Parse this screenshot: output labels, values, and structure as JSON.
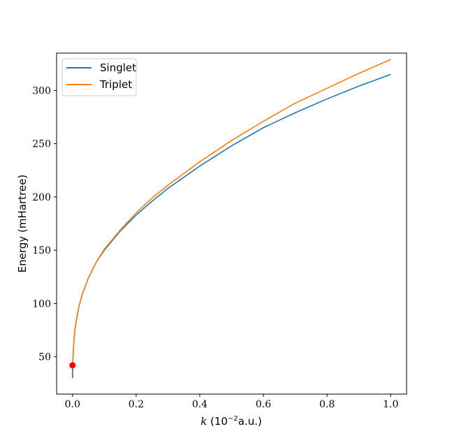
{
  "chart_data": {
    "type": "line",
    "title": "",
    "xlabel_var": "k",
    "xlabel_unit_prefix": " (10",
    "xlabel_unit_exp": "−2",
    "xlabel_unit_suffix": "a.u.)",
    "ylabel": "Energy (mHartree)",
    "xlim": [
      -0.05,
      1.05
    ],
    "ylim": [
      15,
      335
    ],
    "xticks": [
      0.0,
      0.2,
      0.4,
      0.6,
      0.8,
      1.0
    ],
    "xtick_labels": [
      "0.0",
      "0.2",
      "0.4",
      "0.6",
      "0.8",
      "1.0"
    ],
    "yticks": [
      50,
      100,
      150,
      200,
      250,
      300
    ],
    "ytick_labels": [
      "50",
      "100",
      "150",
      "200",
      "250",
      "300"
    ],
    "grid": false,
    "legend_position": "top-left",
    "series": [
      {
        "name": "Singlet",
        "color": "#1f77b4",
        "x": [
          0.0,
          0.001,
          0.005,
          0.01,
          0.02,
          0.03,
          0.05,
          0.075,
          0.1,
          0.15,
          0.2,
          0.25,
          0.3,
          0.4,
          0.5,
          0.6,
          0.7,
          0.8,
          0.9,
          1.0
        ],
        "y": [
          30,
          47,
          68,
          81,
          97,
          108,
          124,
          139,
          150,
          168,
          183,
          196,
          208,
          229,
          248,
          265,
          279,
          292,
          304,
          315
        ]
      },
      {
        "name": "Triplet",
        "color": "#ff7f0e",
        "x": [
          0.001,
          0.005,
          0.01,
          0.02,
          0.03,
          0.05,
          0.075,
          0.1,
          0.15,
          0.2,
          0.25,
          0.3,
          0.4,
          0.5,
          0.6,
          0.7,
          0.8,
          0.9,
          1.0
        ],
        "y": [
          45,
          67,
          80,
          97,
          108,
          124,
          139,
          151,
          169,
          185,
          199,
          211,
          233,
          253,
          271,
          288,
          302,
          316,
          329
        ]
      }
    ],
    "markers": [
      {
        "x": 0.0,
        "y": 42,
        "color": "#ff0000"
      }
    ]
  }
}
